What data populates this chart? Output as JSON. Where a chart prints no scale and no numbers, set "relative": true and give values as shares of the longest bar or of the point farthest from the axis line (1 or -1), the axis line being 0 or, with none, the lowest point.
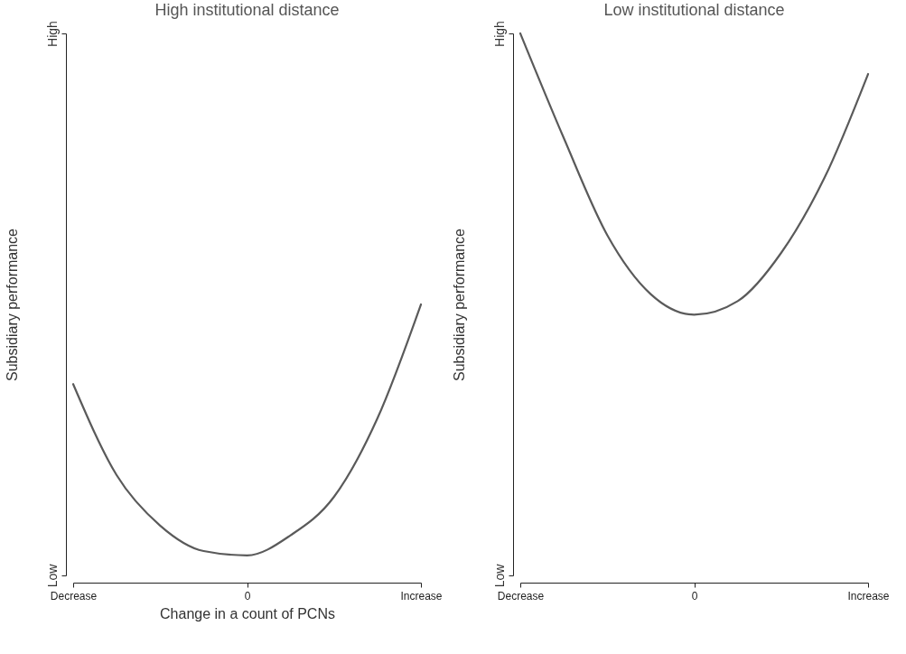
{
  "chart_data": [
    {
      "type": "line",
      "title": "High institutional distance",
      "xlabel": "Change in a count of PCNs",
      "ylabel": "Subsidiary performance",
      "relative": true,
      "ylim": [
        0,
        2
      ],
      "annotations": [
        "Low",
        "High"
      ],
      "categories": [
        "Decrease",
        null,
        null,
        null,
        "0",
        null,
        null,
        null,
        "Increase"
      ],
      "series": [
        {
          "color": "#5a5a5a",
          "values": [
            0.706,
            0.37,
            0.184,
            0.09,
            0.074,
            0.148,
            0.29,
            0.58,
            1
          ]
        }
      ]
    },
    {
      "type": "line",
      "title": "Low institutional distance",
      "ylabel": "Subsidiary performance",
      "relative": true,
      "ylim": [
        0,
        1
      ],
      "annotations": [
        "Low",
        "High"
      ],
      "categories": [
        "Decrease",
        null,
        null,
        null,
        "0",
        null,
        null,
        null,
        "Increase"
      ],
      "series": [
        {
          "color": "#5a5a5a",
          "values": [
            1.0,
            0.807,
            0.628,
            0.519,
            0.481,
            0.506,
            0.595,
            0.734,
            0.925
          ]
        }
      ]
    }
  ]
}
